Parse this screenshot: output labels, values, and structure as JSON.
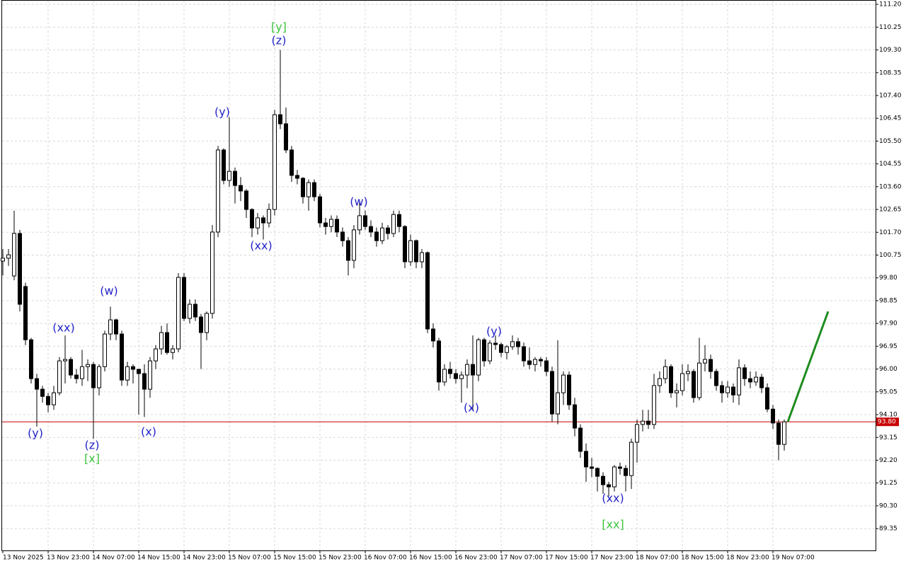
{
  "chart_data": {
    "type": "candlestick",
    "ylim": [
      88.44,
      111.38
    ],
    "yticks": [
      {
        "value": 111.2,
        "label": "111.20"
      },
      110.25,
      {
        "value": 109.3,
        "label": "109.30"
      },
      108.35,
      {
        "value": 107.4,
        "label": "107.40"
      },
      106.45,
      {
        "value": 105.5,
        "label": "105.50"
      },
      104.55,
      {
        "value": 103.6,
        "label": "103.60"
      },
      102.65,
      {
        "value": 101.7,
        "label": "101.70"
      },
      100.75,
      {
        "value": 99.8,
        "label": "99.80"
      },
      98.85,
      {
        "value": 97.9,
        "label": "97.90"
      },
      96.95,
      {
        "value": 96,
        "label": "96.00"
      },
      95.05,
      {
        "value": 94.1,
        "label": "94.10"
      },
      93.15,
      {
        "value": 92.2,
        "label": "92.20"
      },
      91.25,
      {
        "value": 90.3,
        "label": "90.30"
      },
      89.35
    ],
    "grid": true,
    "up_color": "#ffffff",
    "down_color": "#000000",
    "categories": [
      "13 Nov 2025",
      null,
      null,
      null,
      null,
      null,
      null,
      null,
      "13 Nov 23:00",
      null,
      null,
      null,
      null,
      null,
      null,
      null,
      "14 Nov 07:00",
      null,
      null,
      null,
      null,
      null,
      null,
      null,
      "14 Nov 15:00",
      null,
      null,
      null,
      null,
      null,
      null,
      null,
      "14 Nov 23:00",
      null,
      null,
      null,
      null,
      null,
      null,
      null,
      "15 Nov 07:00",
      null,
      null,
      null,
      null,
      null,
      null,
      null,
      "15 Nov 15:00",
      null,
      null,
      null,
      null,
      null,
      null,
      null,
      "15 Nov 23:00",
      null,
      null,
      null,
      null,
      null,
      null,
      null,
      "16 Nov 07:00",
      null,
      null,
      null,
      null,
      null,
      null,
      null,
      "16 Nov 15:00",
      null,
      null,
      null,
      null,
      null,
      null,
      null,
      "16 Nov 23:00",
      null,
      null,
      null,
      null,
      null,
      null,
      null,
      "17 Nov 07:00",
      null,
      null,
      null,
      null,
      null,
      null,
      null,
      "17 Nov 15:00",
      null,
      null,
      null,
      null,
      null,
      null,
      null,
      "17 Nov 23:00",
      null,
      null,
      null,
      null,
      null,
      null,
      null,
      "18 Nov 07:00",
      null,
      null,
      null,
      null,
      null,
      null,
      null,
      "18 Nov 15:00",
      null,
      null,
      null,
      null,
      null,
      null,
      null,
      "18 Nov 23:00",
      null,
      null,
      null,
      null,
      null,
      null,
      null,
      "19 Nov 07:00",
      null,
      null
    ],
    "candles": [
      [
        100.5,
        101.0,
        99.9,
        100.62
      ],
      [
        100.62,
        101.0,
        100.3,
        100.76
      ],
      [
        99.88,
        102.6,
        99.7,
        101.65
      ],
      [
        101.65,
        101.8,
        98.4,
        98.7
      ],
      [
        99.44,
        99.6,
        97.0,
        97.22
      ],
      [
        97.22,
        97.3,
        95.4,
        95.6
      ],
      [
        95.6,
        95.8,
        93.6,
        95.16
      ],
      [
        95.16,
        95.3,
        94.6,
        94.86
      ],
      [
        94.86,
        95.0,
        94.2,
        94.51
      ],
      [
        94.51,
        95.3,
        94.3,
        95.01
      ],
      [
        95.01,
        96.5,
        94.9,
        96.34
      ],
      [
        96.34,
        97.4,
        95.4,
        96.4
      ],
      [
        96.4,
        96.5,
        95.6,
        95.75
      ],
      [
        95.75,
        96.0,
        95.4,
        95.6
      ],
      [
        95.6,
        96.8,
        95.3,
        96.1
      ],
      [
        96.1,
        96.4,
        95.5,
        96.19
      ],
      [
        96.19,
        96.3,
        93.1,
        95.22
      ],
      [
        95.22,
        96.2,
        94.9,
        96.1
      ],
      [
        96.1,
        97.6,
        95.9,
        97.46
      ],
      [
        97.46,
        98.6,
        97.2,
        98.05
      ],
      [
        98.05,
        98.1,
        97.2,
        97.46
      ],
      [
        97.46,
        97.6,
        95.3,
        95.54
      ],
      [
        95.54,
        96.3,
        95.3,
        96.1
      ],
      [
        96.1,
        96.2,
        95.4,
        95.99
      ],
      [
        95.99,
        96.0,
        94.1,
        95.81
      ],
      [
        95.81,
        96.2,
        94.0,
        95.16
      ],
      [
        95.16,
        96.5,
        94.8,
        96.34
      ],
      [
        96.34,
        97.0,
        96.0,
        96.84
      ],
      [
        96.84,
        97.8,
        96.6,
        97.52
      ],
      [
        97.52,
        97.9,
        96.6,
        96.69
      ],
      [
        96.69,
        97.0,
        96.4,
        96.84
      ],
      [
        96.84,
        100.0,
        96.7,
        99.82
      ],
      [
        99.82,
        100.0,
        98.0,
        98.11
      ],
      [
        98.11,
        98.9,
        97.9,
        98.7
      ],
      [
        98.7,
        98.9,
        98.0,
        98.17
      ],
      [
        98.17,
        98.3,
        96.0,
        97.52
      ],
      [
        97.52,
        98.4,
        97.2,
        98.32
      ],
      [
        98.32,
        102.0,
        98.1,
        101.71
      ],
      [
        101.71,
        105.3,
        101.5,
        105.13
      ],
      [
        105.13,
        105.2,
        103.7,
        103.86
      ],
      [
        103.86,
        106.5,
        103.6,
        104.24
      ],
      [
        104.24,
        104.4,
        102.9,
        103.65
      ],
      [
        103.65,
        104.0,
        103.0,
        103.42
      ],
      [
        103.42,
        103.5,
        102.3,
        102.65
      ],
      [
        102.65,
        102.7,
        101.5,
        101.88
      ],
      [
        101.88,
        102.5,
        101.6,
        102.3
      ],
      [
        102.3,
        102.4,
        101.4,
        102.09
      ],
      [
        102.09,
        102.9,
        101.9,
        102.65
      ],
      [
        102.65,
        106.8,
        102.4,
        106.6
      ],
      [
        106.6,
        109.3,
        106.0,
        106.22
      ],
      [
        106.22,
        106.9,
        105.0,
        105.13
      ],
      [
        105.13,
        105.3,
        103.8,
        104.07
      ],
      [
        104.07,
        104.3,
        103.7,
        103.95
      ],
      [
        103.95,
        104.0,
        102.9,
        103.18
      ],
      [
        103.18,
        103.9,
        102.6,
        103.77
      ],
      [
        103.77,
        103.9,
        103.0,
        103.18
      ],
      [
        103.18,
        103.3,
        101.9,
        102.09
      ],
      [
        102.09,
        102.3,
        101.6,
        101.94
      ],
      [
        101.94,
        102.4,
        101.7,
        102.24
      ],
      [
        102.24,
        102.4,
        101.5,
        101.71
      ],
      [
        101.71,
        101.9,
        101.1,
        101.35
      ],
      [
        101.35,
        101.5,
        99.9,
        100.53
      ],
      [
        100.53,
        102.0,
        100.2,
        101.8
      ],
      [
        101.8,
        103.0,
        101.6,
        102.39
      ],
      [
        102.39,
        102.6,
        101.8,
        101.94
      ],
      [
        101.94,
        102.2,
        101.5,
        101.71
      ],
      [
        101.71,
        101.9,
        101.1,
        101.35
      ],
      [
        101.35,
        102.1,
        101.2,
        101.88
      ],
      [
        101.88,
        102.0,
        101.4,
        101.65
      ],
      [
        101.65,
        102.6,
        101.5,
        102.44
      ],
      [
        102.44,
        102.6,
        101.7,
        101.94
      ],
      [
        101.94,
        102.0,
        100.2,
        100.47
      ],
      [
        100.47,
        101.6,
        100.3,
        101.35
      ],
      [
        101.35,
        101.4,
        100.2,
        100.47
      ],
      [
        100.47,
        101.0,
        100.2,
        100.85
      ],
      [
        100.85,
        100.9,
        97.5,
        97.67
      ],
      [
        97.67,
        97.9,
        96.9,
        97.17
      ],
      [
        97.17,
        97.3,
        95.1,
        95.46
      ],
      [
        95.46,
        96.2,
        95.3,
        95.99
      ],
      [
        95.99,
        96.3,
        95.6,
        95.81
      ],
      [
        95.81,
        96.0,
        95.4,
        95.6
      ],
      [
        95.6,
        95.9,
        94.6,
        95.75
      ],
      [
        95.75,
        96.4,
        95.2,
        96.19
      ],
      [
        96.19,
        97.4,
        94.3,
        95.75
      ],
      [
        95.75,
        97.3,
        95.5,
        97.22
      ],
      [
        97.22,
        97.3,
        96.1,
        96.34
      ],
      [
        96.34,
        97.2,
        96.2,
        97.08
      ],
      [
        97.08,
        97.4,
        96.8,
        97.02
      ],
      [
        97.02,
        97.1,
        96.5,
        96.69
      ],
      [
        96.69,
        97.0,
        96.4,
        96.93
      ],
      [
        96.93,
        97.4,
        96.8,
        97.14
      ],
      [
        97.14,
        97.3,
        96.6,
        96.93
      ],
      [
        96.93,
        97.1,
        96.1,
        96.34
      ],
      [
        96.34,
        96.9,
        96.0,
        96.19
      ],
      [
        96.19,
        96.5,
        95.9,
        96.4
      ],
      [
        96.4,
        96.5,
        96.1,
        96.34
      ],
      [
        96.34,
        96.5,
        95.7,
        95.9
      ],
      [
        95.9,
        96.1,
        93.8,
        94.13
      ],
      [
        94.13,
        97.2,
        93.7,
        95.01
      ],
      [
        95.01,
        95.9,
        94.5,
        95.75
      ],
      [
        95.75,
        95.9,
        94.3,
        94.51
      ],
      [
        94.51,
        94.8,
        93.2,
        93.54
      ],
      [
        93.54,
        93.7,
        92.3,
        92.57
      ],
      [
        92.57,
        92.9,
        91.3,
        91.92
      ],
      [
        91.92,
        92.3,
        91.5,
        91.86
      ],
      [
        91.86,
        91.9,
        90.9,
        91.53
      ],
      [
        91.53,
        91.7,
        90.8,
        91.18
      ],
      [
        91.18,
        91.3,
        90.7,
        91.09
      ],
      [
        91.09,
        92.0,
        90.9,
        91.92
      ],
      [
        91.92,
        92.1,
        91.6,
        91.86
      ],
      [
        91.86,
        92.0,
        90.9,
        91.56
      ],
      [
        91.56,
        93.1,
        91.0,
        92.95
      ],
      [
        92.95,
        93.9,
        92.1,
        93.69
      ],
      [
        93.69,
        94.3,
        93.4,
        93.83
      ],
      [
        93.83,
        94.3,
        93.5,
        93.69
      ],
      [
        93.69,
        95.8,
        93.5,
        95.31
      ],
      [
        95.31,
        95.9,
        95.0,
        95.6
      ],
      [
        95.6,
        96.4,
        95.4,
        96.1
      ],
      [
        96.1,
        96.2,
        94.8,
        95.01
      ],
      [
        95.01,
        95.4,
        94.4,
        95.1
      ],
      [
        95.1,
        96.2,
        94.9,
        95.81
      ],
      [
        95.81,
        96.2,
        95.5,
        95.9
      ],
      [
        95.9,
        96.0,
        94.6,
        94.81
      ],
      [
        94.81,
        97.3,
        94.7,
        96.25
      ],
      [
        96.25,
        97.0,
        95.9,
        96.4
      ],
      [
        96.4,
        96.6,
        95.6,
        95.9
      ],
      [
        95.9,
        96.0,
        95.1,
        95.31
      ],
      [
        95.31,
        95.5,
        94.6,
        95.01
      ],
      [
        95.01,
        95.5,
        94.8,
        95.25
      ],
      [
        95.25,
        95.4,
        94.6,
        94.92
      ],
      [
        94.92,
        96.4,
        94.5,
        96.05
      ],
      [
        96.05,
        96.2,
        95.3,
        95.6
      ],
      [
        95.6,
        95.9,
        95.2,
        95.46
      ],
      [
        95.46,
        95.9,
        95.3,
        95.66
      ],
      [
        95.66,
        95.8,
        95.0,
        95.22
      ],
      [
        95.22,
        95.4,
        94.2,
        94.33
      ],
      [
        94.33,
        94.5,
        93.5,
        93.75
      ],
      [
        93.75,
        93.9,
        92.2,
        92.86
      ],
      [
        92.86,
        93.9,
        92.6,
        93.8
      ]
    ],
    "current_price": {
      "value": 93.8,
      "label": "93.80",
      "color": "#c80000"
    },
    "forecast": {
      "values": [
        93.8,
        98.4
      ],
      "color": "#1e8c1e"
    },
    "annotations": [
      {
        "text": "(y)",
        "color": "#2323c8"
      },
      {
        "text": "(xx)",
        "color": "#2323c8"
      },
      {
        "text": "(w)",
        "color": "#2323c8"
      },
      {
        "text": "(z)",
        "color": "#2323c8"
      },
      {
        "text": "[x]",
        "color": "#3cc43c"
      },
      {
        "text": "(x)",
        "color": "#2323c8"
      },
      {
        "text": "(y)",
        "color": "#2323c8"
      },
      {
        "text": "(xx)",
        "color": "#2323c8"
      },
      {
        "text": "[y]",
        "color": "#3cc43c"
      },
      {
        "text": "(z)",
        "color": "#2323c8"
      },
      {
        "text": "(w)",
        "color": "#2323c8"
      },
      {
        "text": "(x)",
        "color": "#2323c8"
      },
      {
        "text": "(y)",
        "color": "#2323c8"
      },
      {
        "text": "(xx)",
        "color": "#2323c8"
      },
      {
        "text": "[xx]",
        "color": "#3cc43c"
      }
    ]
  }
}
